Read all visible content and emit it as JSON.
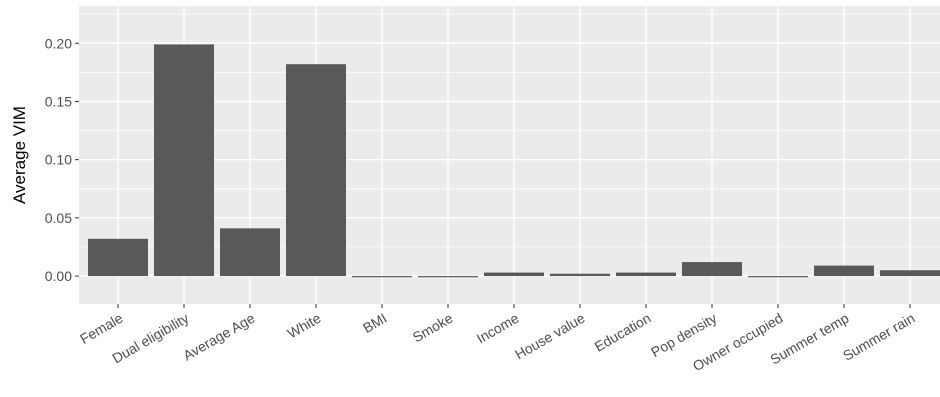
{
  "chart_data": {
    "type": "bar",
    "title": "",
    "xlabel": "",
    "ylabel": "Average VIM",
    "ylim": [
      -0.024,
      0.232
    ],
    "yticks": [
      0.0,
      0.05,
      0.1,
      0.15,
      0.2
    ],
    "ytick_labels": [
      "0.00",
      "0.05",
      "0.10",
      "0.15",
      "0.20"
    ],
    "categories": [
      "Female",
      "Dual eligibility",
      "Average Age",
      "White",
      "BMI",
      "Smoke",
      "Income",
      "House value",
      "Education",
      "Pop density",
      "Owner occupied",
      "Summer temp",
      "Summer rain"
    ],
    "values": [
      0.032,
      0.199,
      0.041,
      0.182,
      -0.001,
      -0.001,
      0.003,
      0.002,
      0.003,
      0.012,
      -0.001,
      0.009,
      0.005
    ],
    "grid": true,
    "colors": {
      "panel": "#EBEBEB",
      "grid": "#FFFFFF",
      "bar": "#595959",
      "text": "#4D4D4D",
      "title_text": "#000000"
    }
  }
}
